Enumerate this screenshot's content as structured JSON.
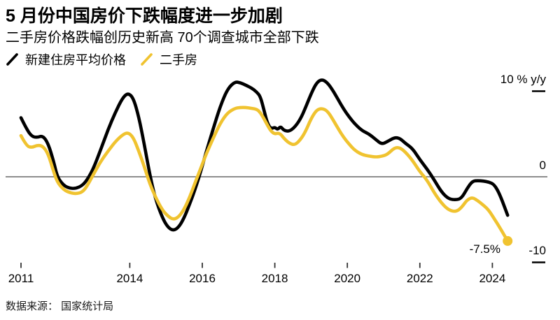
{
  "header": {
    "title": "5 月份中国房价下跌幅度进一步加剧",
    "subtitle": "二手房价格跌幅创历史新高 70个调查城市全部下跌"
  },
  "legend": {
    "items": [
      {
        "label": "新建住房平均价格",
        "color": "#000000"
      },
      {
        "label": "二手房",
        "color": "#F0C330"
      }
    ]
  },
  "chart_data": {
    "type": "line",
    "title": "5 月份中国房价下跌幅度进一步加剧",
    "subtitle": "二手房价格跌幅创历史新高 70个调查城市全部下跌",
    "unit": "% y/y",
    "x": [
      2011.0,
      2011.15,
      2011.3,
      2011.45,
      2011.6,
      2011.75,
      2011.9,
      2012.0,
      2012.15,
      2012.3,
      2012.5,
      2012.7,
      2012.85,
      2013.0,
      2013.2,
      2013.4,
      2013.6,
      2013.8,
      2013.95,
      2014.1,
      2014.25,
      2014.4,
      2014.55,
      2014.7,
      2014.9,
      2015.05,
      2015.2,
      2015.35,
      2015.5,
      2015.65,
      2015.8,
      2015.95,
      2016.1,
      2016.3,
      2016.5,
      2016.7,
      2016.9,
      2017.05,
      2017.2,
      2017.35,
      2017.5,
      2017.6,
      2017.7,
      2017.8,
      2017.9,
      2018.0,
      2018.08,
      2018.16,
      2018.25,
      2018.4,
      2018.55,
      2018.7,
      2018.85,
      2019.0,
      2019.15,
      2019.3,
      2019.45,
      2019.6,
      2019.75,
      2019.9,
      2020.05,
      2020.2,
      2020.4,
      2020.6,
      2020.8,
      2020.95,
      2021.1,
      2021.3,
      2021.45,
      2021.6,
      2021.8,
      2022.0,
      2022.2,
      2022.4,
      2022.6,
      2022.8,
      2023.0,
      2023.15,
      2023.3,
      2023.45,
      2023.6,
      2023.75,
      2023.9,
      2024.05,
      2024.2,
      2024.42
    ],
    "series": [
      {
        "name": "新建住房平均价格",
        "color": "#000000",
        "values": [
          6.9,
          5.6,
          4.7,
          4.6,
          4.8,
          3.9,
          1.8,
          0.0,
          -0.9,
          -1.3,
          -1.4,
          -1.0,
          -0.2,
          1.0,
          3.2,
          5.5,
          7.5,
          9.2,
          9.8,
          9.2,
          7.0,
          3.8,
          0.3,
          -2.5,
          -4.8,
          -5.9,
          -6.3,
          -5.9,
          -4.8,
          -3.2,
          -1.5,
          0.5,
          2.8,
          5.6,
          8.3,
          10.3,
          11.1,
          11.0,
          10.7,
          10.4,
          9.9,
          9.4,
          7.8,
          6.2,
          5.6,
          5.8,
          5.5,
          5.9,
          5.4,
          5.3,
          5.8,
          6.7,
          8.1,
          9.7,
          11.0,
          11.4,
          11.0,
          10.1,
          9.0,
          7.9,
          7.0,
          6.2,
          5.4,
          5.0,
          4.3,
          3.8,
          4.1,
          4.6,
          4.5,
          3.9,
          3.3,
          2.0,
          0.9,
          -0.4,
          -1.8,
          -2.6,
          -2.7,
          -2.5,
          -1.4,
          -0.5,
          -0.45,
          -0.5,
          -0.6,
          -0.9,
          -2.0,
          -4.5
        ]
      },
      {
        "name": "二手房",
        "color": "#F0C330",
        "values": [
          4.8,
          3.6,
          3.4,
          3.7,
          3.6,
          2.7,
          0.6,
          -0.6,
          -1.4,
          -1.8,
          -2.0,
          -1.8,
          -0.9,
          0.3,
          1.8,
          3.0,
          4.1,
          4.9,
          5.2,
          4.6,
          3.0,
          1.2,
          -0.8,
          -2.3,
          -3.9,
          -4.6,
          -5.0,
          -4.7,
          -3.8,
          -2.4,
          -0.7,
          0.9,
          2.6,
          4.5,
          6.3,
          7.5,
          8.0,
          8.1,
          8.1,
          8.0,
          7.9,
          7.5,
          6.8,
          6.0,
          5.3,
          5.0,
          5.1,
          5.0,
          4.5,
          3.9,
          3.7,
          4.3,
          5.3,
          6.8,
          7.8,
          8.0,
          7.7,
          6.7,
          5.6,
          4.6,
          3.8,
          3.1,
          2.6,
          2.4,
          2.3,
          2.4,
          2.6,
          3.4,
          3.4,
          2.9,
          1.9,
          0.6,
          -0.4,
          -1.9,
          -3.1,
          -3.9,
          -4.1,
          -3.6,
          -2.7,
          -2.4,
          -2.8,
          -3.3,
          -3.9,
          -4.9,
          -5.9,
          -7.5
        ]
      }
    ],
    "xticks": [
      {
        "value": 2011,
        "label": "2011"
      },
      {
        "value": 2014,
        "label": "2014"
      },
      {
        "value": 2016,
        "label": "2016"
      },
      {
        "value": 2018,
        "label": "2018"
      },
      {
        "value": 2020,
        "label": "2020"
      },
      {
        "value": 2022,
        "label": "2022"
      },
      {
        "value": 2024,
        "label": "2024"
      }
    ],
    "yticks": [
      {
        "value": 10,
        "label": "10 % y/y"
      },
      {
        "value": 0,
        "label": "0"
      },
      {
        "value": -10,
        "label": "-10"
      }
    ],
    "xlim": [
      2011,
      2024.6
    ],
    "ylim": [
      -10.5,
      11.5
    ],
    "grid": "zero line only",
    "legend_position": "top-left",
    "annotation": {
      "text": "-7.5%",
      "series": "二手房",
      "x": 2024.42,
      "value": -7.5
    },
    "end_dot": {
      "x": 2024.42,
      "value": -7.5,
      "color": "#F0C330"
    }
  },
  "source": {
    "text": "数据来源： 国家统计局"
  }
}
